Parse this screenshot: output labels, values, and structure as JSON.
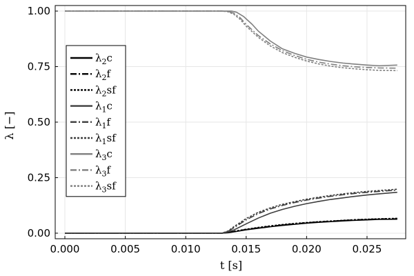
{
  "chart_data": {
    "type": "line",
    "title": "",
    "xlabel": "t [s]",
    "ylabel": "λ [−]",
    "xlim": [
      -0.0008,
      0.0282
    ],
    "ylim": [
      -0.025,
      1.025
    ],
    "xticks": [
      0.0,
      0.005,
      0.01,
      0.015,
      0.02,
      0.025
    ],
    "xtick_labels": [
      "0.000",
      "0.005",
      "0.010",
      "0.015",
      "0.020",
      "0.025"
    ],
    "yticks": [
      0.0,
      0.25,
      0.5,
      0.75,
      1.0
    ],
    "ytick_labels": [
      "0.00",
      "0.25",
      "0.50",
      "0.75",
      "1.00"
    ],
    "grid": true,
    "legend_position": "left-center",
    "series": [
      {
        "name": "λ₂c",
        "label_base": "λ",
        "label_sub": "2",
        "label_suffix": "c",
        "color": "#000000",
        "dash": "solid",
        "x": [
          0,
          0.013,
          0.0135,
          0.014,
          0.015,
          0.016,
          0.017,
          0.018,
          0.019,
          0.02,
          0.021,
          0.022,
          0.023,
          0.024,
          0.025,
          0.026,
          0.0275
        ],
        "y": [
          0,
          0,
          0.002,
          0.006,
          0.015,
          0.022,
          0.029,
          0.035,
          0.04,
          0.045,
          0.049,
          0.052,
          0.055,
          0.058,
          0.06,
          0.062,
          0.063
        ]
      },
      {
        "name": "λ₂f",
        "label_base": "λ",
        "label_sub": "2",
        "label_suffix": "f",
        "color": "#000000",
        "dash": "dashdot",
        "x": [
          0,
          0.013,
          0.0135,
          0.014,
          0.015,
          0.016,
          0.017,
          0.018,
          0.019,
          0.02,
          0.021,
          0.022,
          0.023,
          0.024,
          0.025,
          0.026,
          0.0275
        ],
        "y": [
          0,
          0,
          0.003,
          0.008,
          0.017,
          0.024,
          0.031,
          0.037,
          0.042,
          0.047,
          0.051,
          0.054,
          0.057,
          0.06,
          0.062,
          0.064,
          0.065
        ]
      },
      {
        "name": "λ₂sf",
        "label_base": "λ",
        "label_sub": "2",
        "label_suffix": "sf",
        "color": "#000000",
        "dash": "dot",
        "x": [
          0,
          0.013,
          0.0135,
          0.014,
          0.015,
          0.016,
          0.017,
          0.018,
          0.019,
          0.02,
          0.021,
          0.022,
          0.023,
          0.024,
          0.025,
          0.026,
          0.0275
        ],
        "y": [
          0,
          0,
          0.003,
          0.009,
          0.018,
          0.026,
          0.033,
          0.039,
          0.044,
          0.048,
          0.052,
          0.055,
          0.058,
          0.061,
          0.063,
          0.065,
          0.067
        ]
      },
      {
        "name": "λ₁c",
        "label_base": "λ",
        "label_sub": "1",
        "label_suffix": "c",
        "color": "#3d3d3d",
        "dash": "solid",
        "x": [
          0,
          0.013,
          0.0135,
          0.014,
          0.015,
          0.016,
          0.017,
          0.018,
          0.019,
          0.02,
          0.021,
          0.022,
          0.023,
          0.024,
          0.025,
          0.026,
          0.0275
        ],
        "y": [
          0,
          0,
          0.005,
          0.015,
          0.042,
          0.068,
          0.09,
          0.107,
          0.121,
          0.133,
          0.143,
          0.152,
          0.159,
          0.166,
          0.172,
          0.177,
          0.184
        ]
      },
      {
        "name": "λ₁f",
        "label_base": "λ",
        "label_sub": "1",
        "label_suffix": "f",
        "color": "#3d3d3d",
        "dash": "dashdot",
        "x": [
          0,
          0.013,
          0.0135,
          0.014,
          0.015,
          0.016,
          0.017,
          0.018,
          0.019,
          0.02,
          0.021,
          0.022,
          0.023,
          0.024,
          0.025,
          0.026,
          0.0275
        ],
        "y": [
          0,
          0,
          0.008,
          0.025,
          0.06,
          0.088,
          0.109,
          0.125,
          0.138,
          0.149,
          0.158,
          0.166,
          0.173,
          0.179,
          0.184,
          0.188,
          0.194
        ]
      },
      {
        "name": "λ₁sf",
        "label_base": "λ",
        "label_sub": "1",
        "label_suffix": "sf",
        "color": "#3d3d3d",
        "dash": "dot",
        "x": [
          0,
          0.013,
          0.0135,
          0.014,
          0.015,
          0.016,
          0.017,
          0.018,
          0.019,
          0.02,
          0.021,
          0.022,
          0.023,
          0.024,
          0.025,
          0.026,
          0.0275
        ],
        "y": [
          0,
          0,
          0.01,
          0.03,
          0.066,
          0.094,
          0.114,
          0.13,
          0.142,
          0.153,
          0.162,
          0.17,
          0.177,
          0.183,
          0.188,
          0.192,
          0.198
        ]
      },
      {
        "name": "λ₃c",
        "label_base": "λ",
        "label_sub": "3",
        "label_suffix": "c",
        "color": "#7f7f7f",
        "dash": "solid",
        "x": [
          0,
          0.013,
          0.0138,
          0.0142,
          0.0148,
          0.0155,
          0.016,
          0.017,
          0.018,
          0.019,
          0.02,
          0.021,
          0.022,
          0.023,
          0.024,
          0.025,
          0.026,
          0.0275
        ],
        "y": [
          1,
          1,
          1,
          0.995,
          0.975,
          0.94,
          0.91,
          0.865,
          0.83,
          0.81,
          0.793,
          0.782,
          0.773,
          0.766,
          0.761,
          0.757,
          0.754,
          0.757
        ]
      },
      {
        "name": "λ₃f",
        "label_base": "λ",
        "label_sub": "3",
        "label_suffix": "f",
        "color": "#7f7f7f",
        "dash": "dashdot",
        "x": [
          0,
          0.013,
          0.0135,
          0.014,
          0.0145,
          0.015,
          0.016,
          0.017,
          0.018,
          0.019,
          0.02,
          0.021,
          0.022,
          0.023,
          0.024,
          0.025,
          0.026,
          0.0275
        ],
        "y": [
          1,
          1,
          0.999,
          0.99,
          0.97,
          0.94,
          0.89,
          0.852,
          0.822,
          0.8,
          0.783,
          0.77,
          0.761,
          0.754,
          0.749,
          0.746,
          0.744,
          0.743
        ]
      },
      {
        "name": "λ₃sf",
        "label_base": "λ",
        "label_sub": "3",
        "label_suffix": "sf",
        "color": "#7f7f7f",
        "dash": "dot",
        "x": [
          0,
          0.013,
          0.0135,
          0.014,
          0.0145,
          0.015,
          0.016,
          0.017,
          0.018,
          0.019,
          0.02,
          0.021,
          0.022,
          0.023,
          0.024,
          0.025,
          0.026,
          0.0275
        ],
        "y": [
          1,
          1,
          0.997,
          0.985,
          0.963,
          0.932,
          0.882,
          0.843,
          0.813,
          0.792,
          0.775,
          0.762,
          0.752,
          0.745,
          0.74,
          0.736,
          0.733,
          0.732
        ]
      }
    ]
  }
}
